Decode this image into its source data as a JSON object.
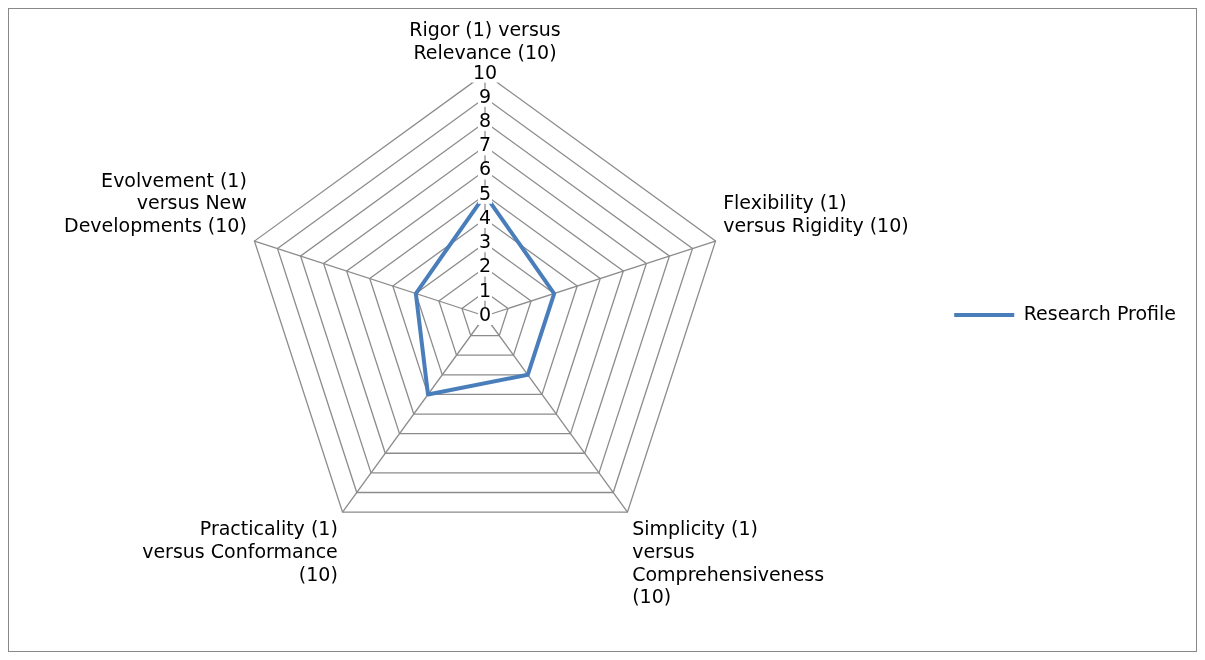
{
  "chart_data": {
    "type": "radar",
    "categories": [
      "Rigor (1) versus Relevance (10)",
      "Flexibility (1) versus Rigidity (10)",
      "Simplicity (1) versus Comprehensiveness (10)",
      "Practicality (1) versus Conformance (10)",
      "Evolvement (1) versus New Developments (10)"
    ],
    "series": [
      {
        "name": "Research Profile",
        "color": "#4a7ebb",
        "values": [
          5,
          3,
          3,
          4,
          3
        ]
      }
    ],
    "ylim": [
      0,
      10
    ],
    "yticks": [
      0,
      1,
      2,
      3,
      4,
      5,
      6,
      7,
      8,
      9,
      10
    ],
    "grid": true,
    "legend": "right"
  }
}
